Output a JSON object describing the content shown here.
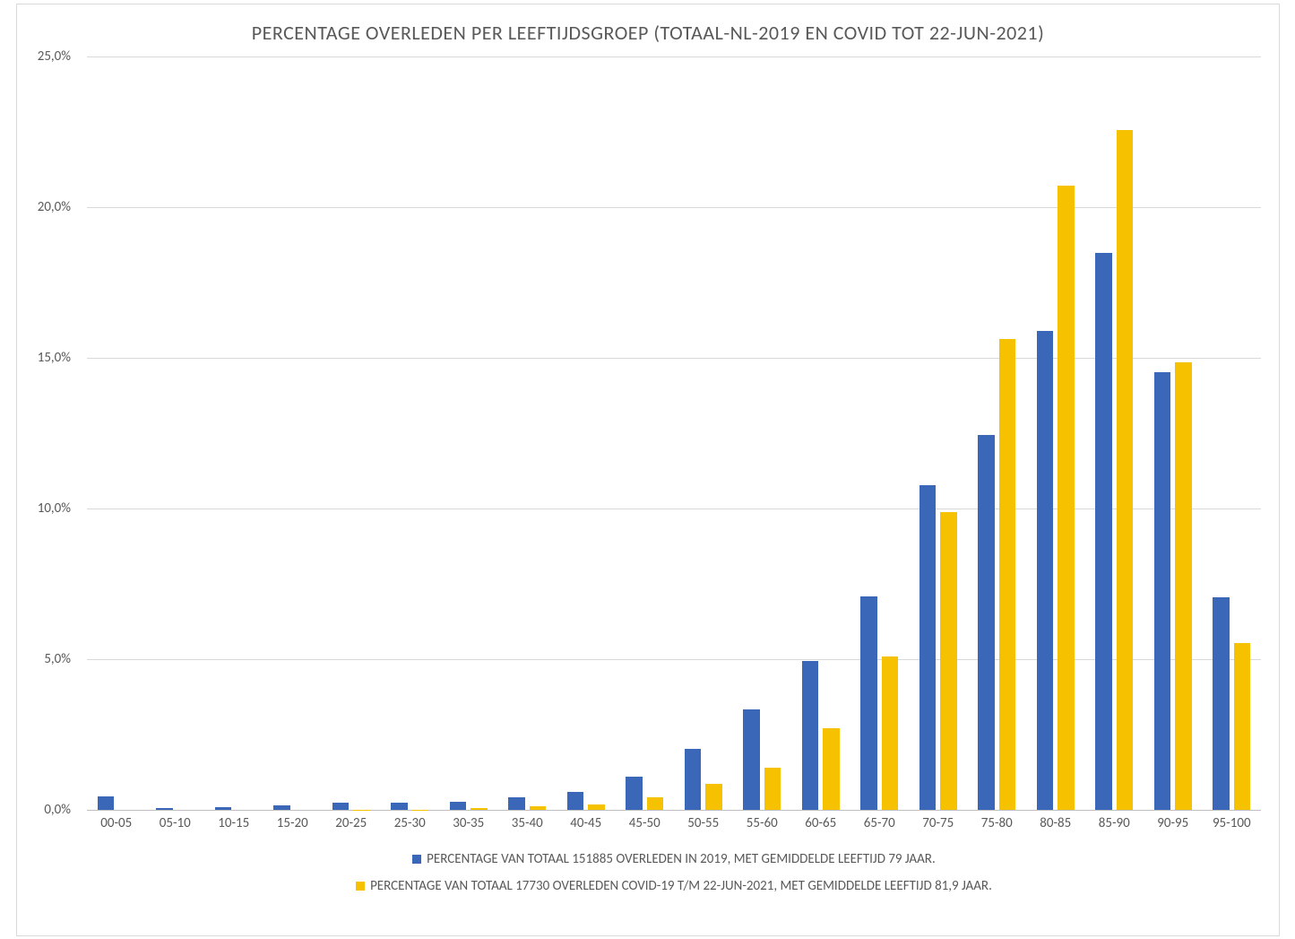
{
  "chart": {
    "type": "bar",
    "title": "PERCENTAGE OVERLEDEN PER LEEFTIJDSGROEP (TOTAAL-NL-2019 EN COVID TOT 22-JUN-2021)",
    "title_fontsize": 22,
    "title_color": "#595959",
    "background_color": "#ffffff",
    "border_color": "#d9d9d9",
    "grid_color": "#d9d9d9",
    "axis_baseline_color": "#bfbfbf",
    "axis_label_color": "#595959",
    "axis_label_fontsize": 15,
    "ylim": [
      0,
      25
    ],
    "ytick_step": 5,
    "yticks": [
      0,
      5,
      10,
      15,
      20,
      25
    ],
    "ytick_labels": [
      "0,0%",
      "5,0%",
      "10,0%",
      "15,0%",
      "20,0%",
      "25,0%"
    ],
    "categories": [
      "00-05",
      "05-10",
      "10-15",
      "15-20",
      "20-25",
      "25-30",
      "30-35",
      "35-40",
      "40-45",
      "45-50",
      "50-55",
      "55-60",
      "60-65",
      "65-70",
      "70-75",
      "75-80",
      "80-85",
      "85-90",
      "90-95",
      "95-100"
    ],
    "series": [
      {
        "name": "PERCENTAGE VAN TOTAAL 151885 OVERLEDEN IN 2019, MET GEMIDDELDE LEEFTIJD 79 JAAR.",
        "color": "#3b67b9",
        "values": [
          0.44,
          0.06,
          0.08,
          0.16,
          0.23,
          0.24,
          0.28,
          0.41,
          0.61,
          1.1,
          2.03,
          3.34,
          4.95,
          7.07,
          10.77,
          12.44,
          15.9,
          18.47,
          14.51,
          7.06
        ]
      },
      {
        "name": "PERCENTAGE VAN TOTAAL 17730 OVERLEDEN COVID-19 T/M 22-JUN-2021, MET GEMIDDELDE LEEFTIJD 81,9 JAAR.",
        "color": "#f6c200",
        "values": [
          0.0,
          0.0,
          0.0,
          0.0,
          0.01,
          0.01,
          0.05,
          0.12,
          0.18,
          0.42,
          0.85,
          1.41,
          2.7,
          5.1,
          9.88,
          15.62,
          20.71,
          22.56,
          14.84,
          5.55
        ]
      }
    ],
    "bar_gap_ratio": 0.3,
    "category_padding_ratio": 0.1,
    "legend_fontsize": 15,
    "legend_color": "#595959",
    "decimal_separator": ","
  }
}
